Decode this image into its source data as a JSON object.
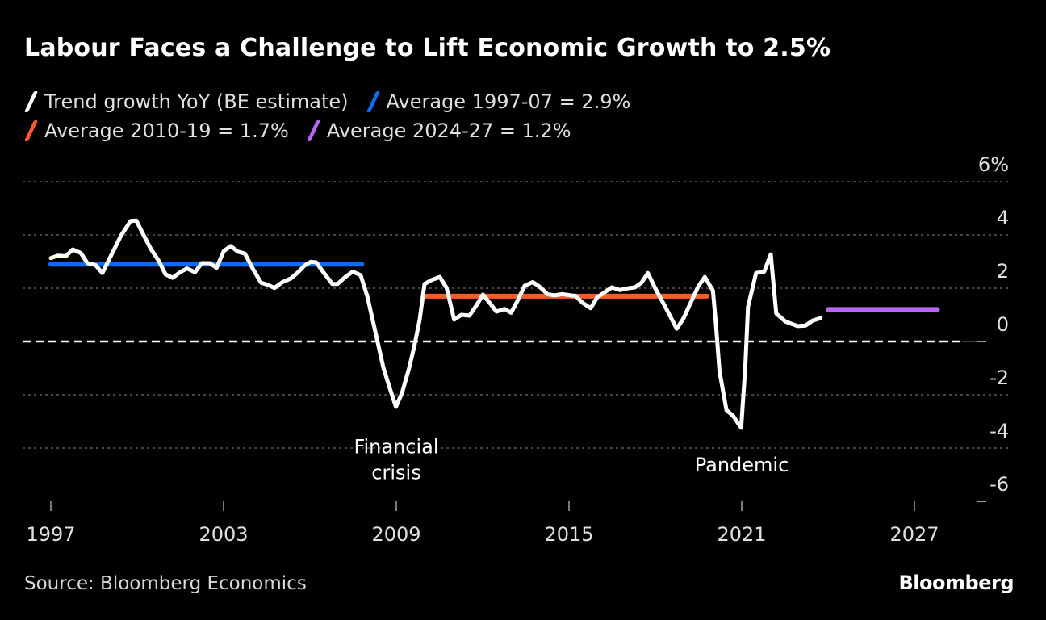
{
  "title": "Labour Faces a Challenge to Lift Economic Growth to 2.5%",
  "legend": [
    {
      "label": "Trend growth YoY (BE estimate)",
      "color": "#ffffff"
    },
    {
      "label": "Average 1997-07 = 2.9%",
      "color": "#0a6cff"
    },
    {
      "label": "Average 2010-19 = 1.7%",
      "color": "#ff5a2a"
    },
    {
      "label": "Average 2024-27 = 1.2%",
      "color": "#b966f2"
    }
  ],
  "source": "Source: Bloomberg Economics",
  "brand": "Bloomberg",
  "chart_data": {
    "type": "line",
    "title": "Labour Faces a Challenge to Lift Economic Growth to 2.5%",
    "xlabel": "",
    "ylabel": "",
    "xlim": [
      1996.65,
      2029.4
    ],
    "ylim": [
      -6,
      6
    ],
    "x_ticks": [
      1997,
      2003,
      2009,
      2015,
      2021,
      2027
    ],
    "x_tick_labels": [
      "1997",
      "2003",
      "2009",
      "2015",
      "2021",
      "2027"
    ],
    "y_ticks": [
      6,
      4,
      2,
      0,
      -2,
      -4,
      -6
    ],
    "y_tick_labels": [
      "6%",
      "4",
      "2",
      "0",
      "-2",
      "-4",
      "-6"
    ],
    "grid": true,
    "legend_position": "top-left",
    "series": [
      {
        "name": "Trend growth YoY (BE estimate)",
        "color": "#ffffff",
        "x": [
          1997.0,
          1997.24,
          1997.52,
          1997.76,
          1998.04,
          1998.27,
          1998.55,
          1998.79,
          1999.11,
          1999.44,
          1999.77,
          1999.97,
          2000.23,
          2000.47,
          2000.75,
          2000.98,
          2001.23,
          2001.49,
          2001.73,
          2002.01,
          2002.24,
          2002.52,
          2002.76,
          2003.01,
          2003.25,
          2003.5,
          2003.74,
          2004.02,
          2004.3,
          2004.53,
          2004.77,
          2005.05,
          2005.33,
          2005.56,
          2005.8,
          2006.03,
          2006.22,
          2006.45,
          2006.78,
          2006.96,
          2007.24,
          2007.49,
          2007.76,
          2007.99,
          2008.18,
          2008.36,
          2008.55,
          2008.78,
          2008.99,
          2009.2,
          2009.44,
          2009.62,
          2009.81,
          2009.98,
          2010.23,
          2010.51,
          2010.75,
          2011.01,
          2011.26,
          2011.54,
          2011.78,
          2012.01,
          2012.24,
          2012.48,
          2012.76,
          2012.99,
          2013.22,
          2013.46,
          2013.74,
          2013.97,
          2014.25,
          2014.49,
          2014.77,
          2015.05,
          2015.23,
          2015.47,
          2015.75,
          2015.98,
          2016.26,
          2016.49,
          2016.77,
          2017.01,
          2017.29,
          2017.52,
          2017.74,
          2017.99,
          2018.32,
          2018.74,
          2018.97,
          2019.25,
          2019.49,
          2019.72,
          2020.0,
          2020.1,
          2020.23,
          2020.47,
          2020.7,
          2020.98,
          2021.12,
          2021.22,
          2021.5,
          2021.78,
          2022.01,
          2022.2,
          2022.52,
          2022.94,
          2023.22,
          2023.46,
          2023.74
        ],
        "values": [
          3.13,
          3.22,
          3.2,
          3.45,
          3.32,
          2.94,
          2.87,
          2.57,
          3.27,
          3.98,
          4.52,
          4.54,
          3.98,
          3.48,
          3.02,
          2.52,
          2.39,
          2.6,
          2.74,
          2.6,
          2.94,
          2.94,
          2.77,
          3.4,
          3.58,
          3.37,
          3.3,
          2.72,
          2.21,
          2.13,
          2.01,
          2.23,
          2.36,
          2.57,
          2.84,
          2.99,
          2.97,
          2.62,
          2.16,
          2.16,
          2.43,
          2.62,
          2.49,
          1.71,
          0.8,
          -0.06,
          -0.97,
          -1.78,
          -2.45,
          -1.93,
          -1.02,
          -0.21,
          0.8,
          2.16,
          2.31,
          2.42,
          2.01,
          0.82,
          1.0,
          0.97,
          1.35,
          1.76,
          1.45,
          1.12,
          1.22,
          1.08,
          1.55,
          2.09,
          2.23,
          2.06,
          1.78,
          1.73,
          1.78,
          1.73,
          1.71,
          1.45,
          1.25,
          1.66,
          1.86,
          2.03,
          1.93,
          1.99,
          2.03,
          2.21,
          2.57,
          2.01,
          1.35,
          0.48,
          0.85,
          1.51,
          2.06,
          2.42,
          1.91,
          0.7,
          -1.12,
          -2.58,
          -2.79,
          -3.24,
          -1.02,
          1.3,
          2.57,
          2.62,
          3.27,
          1.05,
          0.75,
          0.58,
          0.6,
          0.78,
          0.88
        ]
      },
      {
        "name": "Average 1997-07 = 2.9%",
        "color": "#0a6cff",
        "x": [
          1997.0,
          2007.8
        ],
        "values": [
          2.9,
          2.9
        ]
      },
      {
        "name": "Average 2010-19 = 1.7%",
        "color": "#ff5a2a",
        "x": [
          2010.0,
          2019.8
        ],
        "values": [
          1.7,
          1.7
        ]
      },
      {
        "name": "Average 2024-27 = 1.2%",
        "color": "#b966f2",
        "x": [
          2024.0,
          2027.8
        ],
        "values": [
          1.2,
          1.2
        ]
      }
    ],
    "annotations": [
      {
        "text_lines": [
          "Financial",
          "crisis"
        ],
        "x": 2009.0,
        "y": -3.8
      },
      {
        "text": "Pandemic",
        "x": 2021.0,
        "y": -4.6
      }
    ]
  }
}
